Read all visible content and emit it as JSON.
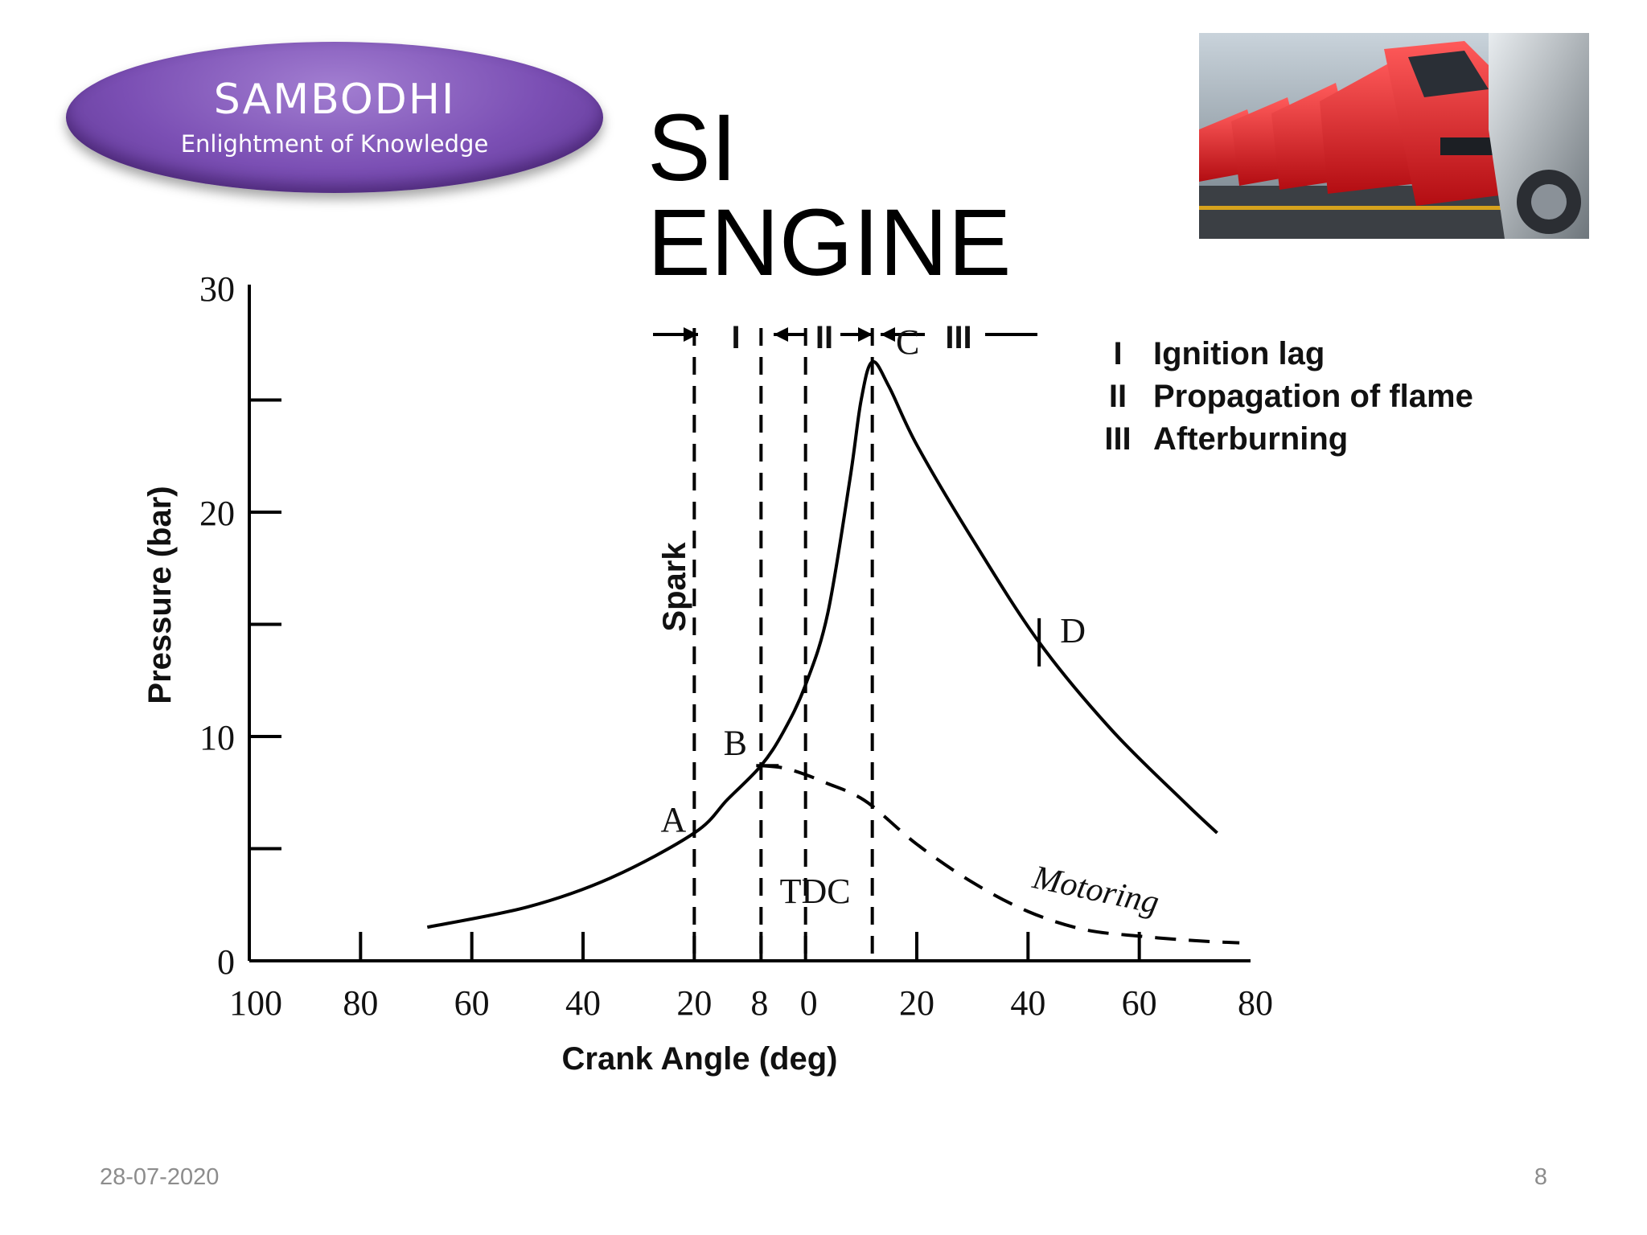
{
  "logo": {
    "name": "SAMBODHI",
    "tagline": "Enlightment of Knowledge"
  },
  "slide": {
    "title": "SI ENGINE",
    "date": "28-07-2020",
    "page": "8"
  },
  "chart_data": {
    "type": "line",
    "xlabel": "Crank Angle (deg)",
    "ylabel": "Pressure (bar)",
    "x_ticks": [
      "100",
      "80",
      "60",
      "40",
      "20",
      "8",
      "0",
      "20",
      "40",
      "60",
      "80"
    ],
    "y_ticks": [
      "30",
      "20",
      "10",
      "0"
    ],
    "ylim": [
      0,
      30
    ],
    "xlim": [
      -100,
      80
    ],
    "series": [
      {
        "name": "",
        "style": "solid",
        "x": [
          -68,
          -50,
          -35,
          -20,
          -14,
          -8,
          -4,
          0,
          4,
          8,
          10,
          12,
          15,
          20,
          30,
          42,
          55,
          68,
          74
        ],
        "y": [
          1.5,
          2.4,
          3.7,
          5.7,
          7.2,
          8.7,
          10.2,
          12.3,
          15.5,
          21.5,
          25,
          26.7,
          25.6,
          23,
          18.8,
          14.2,
          10.3,
          7.1,
          5.7
        ]
      },
      {
        "name": "Motoring",
        "style": "dashed",
        "x": [
          -8,
          -4,
          0,
          4,
          8,
          12,
          20,
          30,
          40,
          50,
          60,
          70,
          78
        ],
        "y": [
          8.7,
          8.6,
          8.3,
          7.9,
          7.5,
          6.9,
          5.2,
          3.5,
          2.2,
          1.4,
          1.1,
          0.9,
          0.8
        ]
      }
    ],
    "event_lines": [
      {
        "x": -20,
        "label": "Spark"
      },
      {
        "x": -8,
        "label": ""
      },
      {
        "x": 0,
        "label": "TDC"
      },
      {
        "x": 12,
        "label": ""
      }
    ],
    "points": [
      {
        "label": "A",
        "x": -20,
        "y": 5.7
      },
      {
        "label": "B",
        "x": -8,
        "y": 8.7
      },
      {
        "label": "C",
        "x": 12,
        "y": 26.7
      },
      {
        "label": "D",
        "x": 42,
        "y": 14.2
      }
    ],
    "phases": [
      "I",
      "II",
      "III"
    ],
    "legend": [
      {
        "key": "I",
        "text": "Ignition lag"
      },
      {
        "key": "II",
        "text": "Propagation of flame"
      },
      {
        "key": "III",
        "text": "Afterburning"
      }
    ],
    "motoring_label": "Motoring"
  }
}
